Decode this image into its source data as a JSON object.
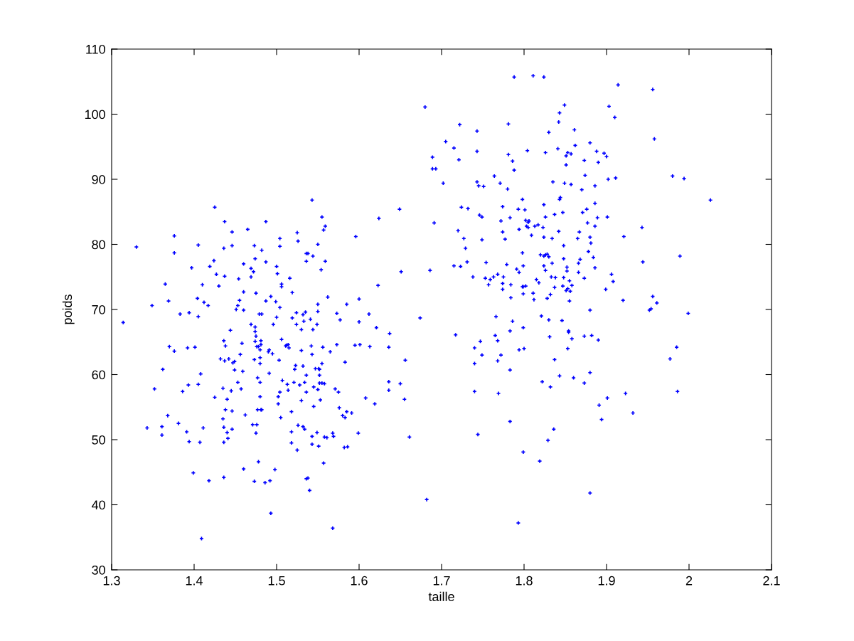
{
  "chart_data": {
    "type": "scatter",
    "xlabel": "taille",
    "ylabel": "poids",
    "xlim": [
      1.3,
      2.1
    ],
    "ylim": [
      30,
      110
    ],
    "xticks": [
      1.3,
      1.4,
      1.5,
      1.6,
      1.7,
      1.8,
      1.9,
      2,
      2.1
    ],
    "yticks": [
      30,
      40,
      50,
      60,
      70,
      80,
      90,
      100,
      110
    ],
    "marker": "cross",
    "series": [
      {
        "color": "#0000ff",
        "x": [
          1.425,
          1.437,
          1.487,
          1.465,
          1.446,
          1.376,
          1.525,
          1.504,
          1.526,
          1.33,
          1.405,
          1.436,
          1.446,
          1.473,
          1.482,
          1.504,
          1.376,
          1.474,
          1.424,
          1.46,
          1.487,
          1.397,
          1.419,
          1.469,
          1.5,
          1.472,
          1.427,
          1.437,
          1.469,
          1.501,
          1.454,
          1.516,
          1.365,
          1.41,
          1.43,
          1.506,
          1.506,
          1.46,
          1.475,
          1.519,
          1.493,
          1.404,
          1.369,
          1.412,
          1.455,
          1.487,
          1.499,
          1.349,
          1.417,
          1.453,
          1.504,
          1.451,
          1.46,
          1.524,
          1.383,
          1.394,
          1.479,
          1.482,
          1.405,
          1.5,
          1.519,
          1.314,
          1.469,
          1.474,
          1.496,
          1.524,
          1.444,
          1.474,
          1.475,
          1.436,
          1.458,
          1.474,
          1.481,
          1.506,
          1.37,
          1.376,
          1.392,
          1.401,
          1.438,
          1.476,
          1.478,
          1.481,
          1.48,
          1.491,
          1.49,
          1.495,
          1.511,
          1.512,
          1.514,
          1.515,
          1.456,
          1.432,
          1.437,
          1.442,
          1.447,
          1.449,
          1.473,
          1.48,
          1.48,
          1.503,
          1.523,
          1.522,
          1.362,
          1.449,
          1.459,
          1.408,
          1.491,
          1.477,
          1.507,
          1.453,
          1.48,
          1.521,
          1.352,
          1.386,
          1.393,
          1.405,
          1.435,
          1.445,
          1.457,
          1.513,
          1.514,
          1.504,
          1.425,
          1.44,
          1.48,
          1.502,
          1.502,
          1.438,
          1.446,
          1.477,
          1.481,
          1.482,
          1.518,
          1.368,
          1.462,
          1.435,
          1.505,
          1.381,
          1.343,
          1.361,
          1.411,
          1.436,
          1.471,
          1.476,
          1.526,
          1.361,
          1.391,
          1.44,
          1.446,
          1.475,
          1.518,
          1.394,
          1.407,
          1.436,
          1.441,
          1.518,
          1.525,
          1.478,
          1.46,
          1.498,
          1.399,
          1.418,
          1.436,
          1.473,
          1.486,
          1.492,
          1.493,
          1.409,
          1.543,
          1.649,
          1.724,
          1.732,
          1.555,
          1.624,
          1.691,
          1.559,
          1.557,
          1.72,
          1.596,
          1.727,
          1.55,
          1.729,
          1.536,
          1.538,
          1.544,
          1.536,
          1.559,
          1.731,
          1.715,
          1.723,
          1.554,
          1.651,
          1.686,
          1.738,
          1.623,
          1.562,
          1.55,
          1.585,
          1.6,
          1.535,
          1.532,
          1.55,
          1.573,
          1.612,
          1.541,
          1.533,
          1.577,
          1.6,
          1.674,
          1.549,
          1.53,
          1.544,
          1.621,
          1.637,
          1.717,
          1.53,
          1.542,
          1.556,
          1.573,
          1.595,
          1.601,
          1.613,
          1.636,
          1.74,
          1.543,
          1.565,
          1.532,
          1.555,
          1.583,
          1.656,
          1.74,
          1.547,
          1.551,
          1.552,
          1.536,
          1.552,
          1.534,
          1.552,
          1.555,
          1.558,
          1.636,
          1.65,
          1.528,
          1.545,
          1.55,
          1.536,
          1.571,
          1.575,
          1.636,
          1.608,
          1.619,
          1.655,
          1.74,
          1.53,
          1.553,
          1.545,
          1.576,
          1.585,
          1.58,
          1.583,
          1.591,
          1.532,
          1.534,
          1.543,
          1.549,
          1.558,
          1.561,
          1.568,
          1.569,
          1.599,
          1.661,
          1.543,
          1.551,
          1.582,
          1.586,
          1.557,
          1.536,
          1.538,
          1.54,
          1.682,
          1.568,
          1.788,
          1.811,
          1.824,
          1.914,
          1.956,
          1.68,
          1.849,
          1.903,
          1.843,
          1.91,
          1.842,
          1.722,
          1.781,
          1.743,
          1.83,
          1.861,
          1.958,
          1.705,
          1.715,
          1.743,
          1.781,
          1.804,
          1.826,
          1.841,
          1.853,
          1.851,
          1.857,
          1.862,
          1.88,
          1.888,
          1.897,
          1.9,
          1.689,
          1.721,
          1.786,
          1.873,
          1.89,
          1.851,
          1.689,
          1.693,
          1.788,
          1.874,
          1.764,
          1.98,
          1.994,
          1.902,
          1.911,
          1.702,
          1.743,
          1.745,
          1.751,
          1.771,
          1.78,
          1.835,
          1.849,
          1.857,
          1.87,
          1.886,
          1.798,
          1.824,
          1.844,
          1.843,
          1.886,
          2.026,
          1.774,
          1.793,
          1.801,
          1.876,
          1.871,
          1.847,
          1.837,
          1.746,
          1.749,
          1.783,
          1.826,
          1.889,
          1.901,
          1.772,
          1.802,
          1.805,
          1.806,
          1.803,
          1.805,
          1.813,
          1.817,
          1.823,
          1.877,
          1.886,
          1.794,
          1.774,
          1.842,
          1.867,
          1.943,
          1.749,
          1.777,
          1.809,
          1.824,
          1.834,
          1.865,
          1.88,
          1.921,
          1.881,
          1.848,
          1.878,
          1.798,
          1.82,
          1.824,
          1.826,
          1.828,
          1.83,
          1.848,
          1.868,
          1.884,
          1.989,
          1.754,
          1.779,
          1.799,
          1.824,
          1.834,
          1.852,
          1.866,
          1.886,
          1.944,
          1.791,
          1.794,
          1.826,
          1.852,
          1.866,
          1.906,
          1.753,
          1.759,
          1.763,
          1.768,
          1.775,
          1.757,
          1.774,
          1.774,
          1.784,
          1.815,
          1.818,
          1.833,
          1.838,
          1.848,
          1.855,
          1.873,
          1.908,
          1.798,
          1.799,
          1.802,
          1.837,
          1.847,
          1.851,
          1.853,
          1.856,
          1.858,
          1.899,
          1.784,
          1.799,
          1.811,
          1.812,
          1.828,
          1.832,
          1.855,
          1.92,
          1.956,
          1.961,
          1.952,
          1.954,
          1.766,
          1.821,
          1.88,
          1.999,
          1.83,
          1.786,
          1.846,
          1.765,
          1.783,
          1.799,
          1.854,
          1.854,
          1.831,
          1.873,
          1.882,
          1.747,
          1.768,
          1.858,
          1.89,
          1.794,
          1.8,
          1.853,
          1.985,
          1.749,
          1.772,
          1.768,
          1.837,
          1.977,
          1.783,
          1.843,
          1.86,
          1.88,
          1.822,
          1.873,
          1.832,
          1.769,
          1.923,
          1.986,
          1.901,
          1.891,
          1.932,
          1.894,
          1.783,
          1.836,
          1.744,
          1.829,
          1.799,
          1.819,
          1.88,
          1.793
        ],
        "values": [
          85.7,
          83.5,
          83.5,
          82.3,
          81.9,
          81.3,
          81.8,
          80.9,
          80.5,
          79.6,
          79.9,
          79.4,
          79.8,
          79.8,
          79.1,
          79.7,
          78.7,
          77.8,
          77.5,
          77.0,
          77.3,
          76.4,
          76.6,
          76.3,
          76.6,
          75.8,
          75.4,
          75.1,
          75.0,
          75.5,
          74.7,
          74.8,
          73.9,
          73.8,
          73.6,
          73.9,
          73.5,
          72.7,
          72.5,
          72.6,
          72.0,
          71.7,
          71.3,
          71.1,
          71.4,
          71.3,
          71.2,
          70.6,
          70.6,
          70.6,
          70.3,
          70.0,
          69.9,
          69.5,
          69.3,
          69.5,
          69.3,
          69.3,
          68.9,
          68.8,
          68.7,
          68.0,
          67.7,
          67.3,
          67.7,
          67.7,
          66.8,
          66.6,
          65.9,
          65.2,
          64.8,
          65.1,
          65.2,
          65.4,
          64.3,
          63.6,
          64.1,
          64.2,
          64.4,
          64.3,
          64.3,
          64.6,
          63.8,
          63.8,
          63.5,
          63.2,
          64.4,
          64.5,
          64.6,
          64.1,
          63.1,
          62.4,
          62.1,
          62.4,
          61.8,
          62.0,
          62.3,
          62.6,
          61.7,
          62.2,
          61.4,
          60.8,
          60.8,
          60.7,
          60.5,
          60.1,
          60.2,
          59.5,
          59.1,
          58.8,
          58.8,
          58.8,
          57.8,
          57.4,
          58.4,
          58.5,
          57.9,
          57.5,
          57.8,
          58.5,
          57.6,
          57.3,
          56.5,
          56.2,
          56.6,
          56.6,
          55.5,
          54.6,
          54.4,
          54.6,
          54.6,
          54.6,
          54.3,
          53.7,
          53.8,
          53.2,
          53.4,
          52.5,
          51.8,
          52.0,
          51.8,
          51.9,
          52.3,
          52.3,
          52.2,
          50.7,
          51.2,
          51.1,
          51.6,
          51.0,
          51.2,
          49.7,
          49.6,
          49.6,
          50.2,
          49.5,
          48.4,
          46.6,
          45.5,
          45.4,
          44.9,
          43.7,
          44.2,
          43.6,
          43.4,
          43.7,
          38.7,
          34.8,
          86.8,
          85.4,
          85.7,
          85.5,
          84.2,
          84.0,
          83.3,
          82.8,
          82.2,
          82.1,
          81.2,
          80.9,
          80.0,
          79.4,
          78.6,
          78.6,
          78.2,
          77.4,
          77.4,
          77.3,
          76.7,
          76.6,
          76.1,
          75.8,
          76.0,
          75.0,
          73.7,
          71.9,
          70.8,
          70.8,
          71.6,
          69.6,
          69.2,
          69.7,
          69.4,
          69.3,
          68.5,
          68.2,
          68.4,
          68.1,
          68.7,
          67.7,
          66.9,
          66.9,
          67.2,
          66.3,
          66.1,
          63.7,
          64.4,
          64.2,
          64.6,
          64.5,
          64.6,
          64.3,
          64.2,
          64.1,
          63.1,
          63.5,
          61.3,
          61.7,
          61.9,
          62.2,
          61.7,
          60.9,
          60.9,
          60.8,
          59.9,
          59.9,
          58.8,
          58.7,
          58.7,
          58.6,
          58.9,
          58.6,
          58.4,
          58.1,
          57.7,
          57.3,
          57.8,
          57.3,
          57.6,
          56.4,
          55.5,
          56.2,
          57.4,
          56.0,
          56.1,
          55.1,
          54.9,
          54.3,
          53.7,
          53.4,
          54.1,
          52.0,
          51.6,
          50.5,
          51.1,
          50.4,
          50.3,
          51.0,
          50.5,
          51.0,
          50.4,
          49.3,
          49.0,
          48.8,
          48.9,
          46.4,
          44.0,
          44.1,
          42.2,
          40.8,
          36.4,
          105.7,
          105.9,
          105.7,
          104.5,
          103.8,
          101.1,
          101.4,
          101.2,
          100.2,
          99.5,
          98.8,
          98.4,
          98.5,
          97.4,
          97.2,
          97.6,
          96.2,
          95.8,
          94.8,
          94.3,
          93.8,
          94.4,
          94.1,
          94.7,
          94.1,
          93.6,
          93.9,
          95.2,
          95.6,
          94.3,
          94.0,
          93.5,
          93.4,
          93.0,
          92.8,
          92.9,
          92.6,
          92.2,
          91.6,
          91.6,
          91.4,
          90.6,
          90.5,
          90.5,
          90.1,
          90.0,
          90.2,
          89.4,
          89.6,
          89.0,
          88.9,
          89.4,
          88.5,
          89.6,
          89.4,
          89.2,
          88.4,
          89.0,
          86.9,
          86.1,
          87.2,
          86.9,
          86.3,
          86.8,
          85.8,
          85.4,
          85.3,
          85.4,
          84.9,
          84.9,
          84.6,
          84.5,
          84.2,
          84.1,
          84.2,
          84.1,
          84.2,
          83.6,
          83.7,
          83.4,
          83.6,
          82.8,
          82.6,
          82.8,
          83.0,
          82.6,
          83.3,
          82.8,
          82.3,
          81.9,
          82.0,
          81.9,
          82.6,
          80.7,
          80.8,
          81.4,
          81.1,
          80.9,
          80.9,
          81.1,
          81.2,
          80.2,
          79.8,
          78.9,
          78.7,
          78.4,
          78.2,
          78.4,
          78.5,
          78.1,
          77.8,
          77.7,
          78.0,
          78.2,
          77.2,
          76.9,
          76.7,
          76.7,
          77.1,
          76.5,
          77.1,
          76.4,
          77.3,
          76.2,
          75.7,
          76.0,
          75.9,
          75.7,
          75.4,
          74.8,
          74.6,
          75.0,
          75.4,
          75.0,
          73.8,
          74.0,
          73.1,
          73.8,
          74.6,
          74.1,
          75.0,
          74.9,
          74.9,
          74.4,
          74.8,
          74.3,
          73.5,
          73.5,
          73.6,
          73.4,
          73.6,
          72.9,
          73.2,
          72.8,
          73.7,
          73.1,
          71.8,
          72.4,
          72.5,
          71.5,
          71.7,
          72.3,
          71.3,
          71.4,
          72.0,
          71.0,
          69.9,
          70.1,
          68.9,
          69.0,
          69.9,
          69.4,
          68.4,
          68.2,
          68.3,
          66.0,
          66.7,
          67.2,
          66.7,
          66.5,
          65.8,
          65.9,
          66.0,
          65.1,
          65.2,
          65.5,
          65.3,
          63.8,
          64.0,
          64.0,
          64.2,
          63.0,
          63.0,
          62.1,
          62.3,
          62.4,
          60.7,
          59.8,
          59.5,
          60.3,
          58.9,
          58.7,
          58.1,
          57.1,
          57.1,
          57.4,
          56.4,
          55.3,
          54.1,
          53.1,
          52.8,
          51.6,
          50.8,
          49.9,
          48.1,
          46.7,
          41.8,
          37.2
        ]
      }
    ]
  }
}
